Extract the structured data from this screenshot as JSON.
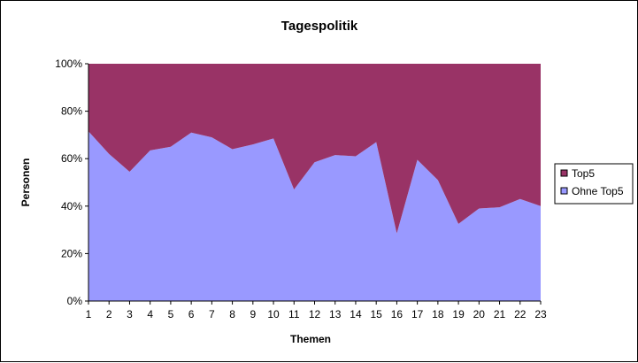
{
  "chart_data": {
    "type": "area",
    "stacked": "percent",
    "title": "Tagespolitik",
    "xlabel": "Themen",
    "ylabel": "Personen",
    "categories": [
      "1",
      "2",
      "3",
      "4",
      "5",
      "6",
      "7",
      "8",
      "9",
      "10",
      "11",
      "12",
      "13",
      "14",
      "15",
      "16",
      "17",
      "18",
      "19",
      "20",
      "21",
      "22",
      "23"
    ],
    "ylim": [
      0,
      100
    ],
    "yticks": [
      "0%",
      "20%",
      "40%",
      "60%",
      "80%",
      "100%"
    ],
    "series": [
      {
        "name": "Ohne Top5",
        "color": "#9999FF",
        "values": [
          71.5,
          62,
          54.5,
          63.5,
          65,
          71,
          69,
          64,
          66,
          68.5,
          47,
          58.5,
          61.5,
          61,
          67,
          28.5,
          59.5,
          51,
          32.5,
          39,
          39.5,
          43,
          40
        ]
      },
      {
        "name": "Top5",
        "color": "#993366",
        "values": [
          28.5,
          38,
          45.5,
          36.5,
          35,
          29,
          31,
          36,
          34,
          31.5,
          53,
          41.5,
          38.5,
          39,
          33,
          71.5,
          40.5,
          49,
          67.5,
          61,
          60.5,
          57,
          60
        ]
      }
    ],
    "legend_position": "right",
    "grid": false
  }
}
